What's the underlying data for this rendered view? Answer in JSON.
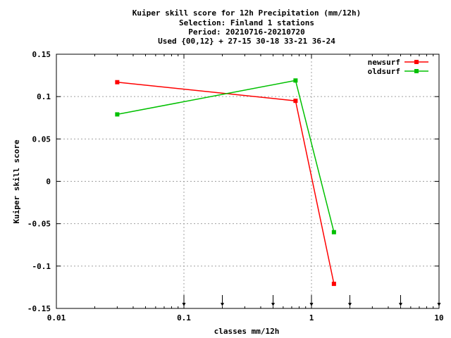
{
  "chart_data": {
    "type": "line",
    "title_lines": [
      "Kuiper skill score  for 12h Precipitation (mm/12h)",
      "Selection: Finland      1 stations",
      "Period: 20210716-20210720",
      "Used {00,12} + 27-15 30-18 33-21 36-24"
    ],
    "xlabel": "classes mm/12h",
    "ylabel": "Kuiper skill score",
    "xscale": "log",
    "xlim": [
      0.01,
      10
    ],
    "ylim": [
      -0.15,
      0.15
    ],
    "x_ticks": [
      0.01,
      0.1,
      1,
      10
    ],
    "x_tick_labels": [
      "0.01",
      "0.1",
      "1",
      "10"
    ],
    "y_ticks": [
      0.15,
      0.1,
      0.05,
      0,
      -0.05,
      -0.1,
      -0.15
    ],
    "y_tick_labels": [
      "0.15",
      "0.1",
      "0.05",
      "0",
      "-0.05",
      "-0.1",
      "-0.15"
    ],
    "grid": true,
    "legend_position": "top-right",
    "class_markers": [
      0.1,
      0.2,
      0.5,
      1,
      2,
      5,
      10
    ],
    "series": [
      {
        "name": "newsurf",
        "color": "#ff0000",
        "x": [
          0.03,
          0.75,
          1.5
        ],
        "y": [
          0.117,
          0.095,
          -0.121
        ]
      },
      {
        "name": "oldsurf",
        "color": "#00c000",
        "x": [
          0.03,
          0.75,
          1.5
        ],
        "y": [
          0.079,
          0.119,
          -0.06
        ]
      }
    ]
  }
}
